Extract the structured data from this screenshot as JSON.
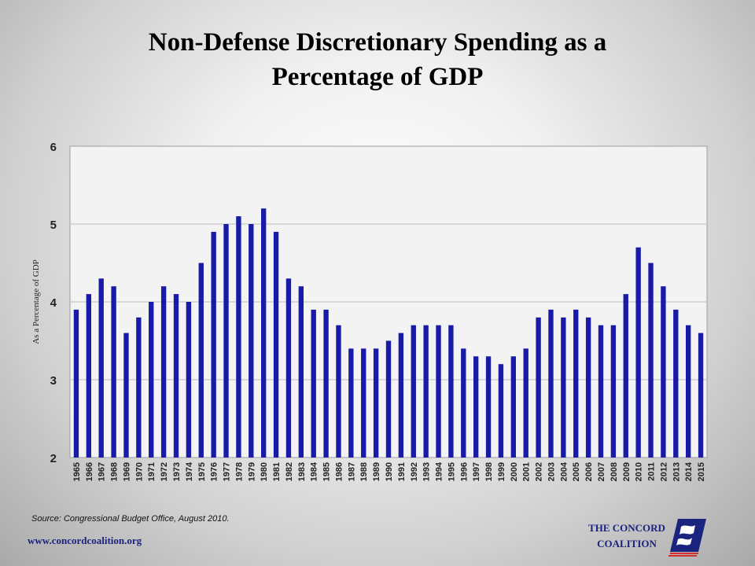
{
  "slide": {
    "title_line1": "Non-Defense Discretionary Spending as a",
    "title_line2": "Percentage of GDP",
    "source": "Source: Congressional Budget Office, August 2010.",
    "url": "www.concordcoalition.org",
    "logo_line1": "THE CONCORD",
    "logo_line2": "COALITION",
    "logo_icon": "concord-coalition-flag-logo"
  },
  "colors": {
    "bar": "#1a1aa8",
    "plot_background": "#f3f3f3",
    "grid": "#bdbdbd",
    "text_brand": "#1a237e",
    "logo_red": "#d32f2f"
  },
  "chart_data": {
    "type": "bar",
    "title": "Non-Defense Discretionary Spending as a Percentage of GDP",
    "xlabel": "",
    "ylabel": "As a Percentage of GDP",
    "ylim": [
      2,
      6
    ],
    "yticks": [
      2,
      3,
      4,
      5,
      6
    ],
    "grid": true,
    "legend": "none",
    "categories": [
      "1965",
      "1966",
      "1967",
      "1968",
      "1969",
      "1970",
      "1971",
      "1972",
      "1973",
      "1974",
      "1975",
      "1976",
      "1977",
      "1978",
      "1979",
      "1980",
      "1981",
      "1982",
      "1983",
      "1984",
      "1985",
      "1986",
      "1987",
      "1988",
      "1989",
      "1990",
      "1991",
      "1992",
      "1993",
      "1994",
      "1995",
      "1996",
      "1997",
      "1998",
      "1999",
      "2000",
      "2001",
      "2002",
      "2003",
      "2004",
      "2005",
      "2006",
      "2007",
      "2008",
      "2009",
      "2010",
      "2011",
      "2012",
      "2013",
      "2014",
      "2015"
    ],
    "values": [
      3.9,
      4.1,
      4.3,
      4.2,
      3.6,
      3.8,
      4.0,
      4.2,
      4.1,
      4.0,
      4.5,
      4.9,
      5.0,
      5.1,
      5.0,
      5.2,
      4.9,
      4.3,
      4.2,
      3.9,
      3.9,
      3.7,
      3.4,
      3.4,
      3.4,
      3.5,
      3.6,
      3.7,
      3.7,
      3.7,
      3.7,
      3.4,
      3.3,
      3.3,
      3.2,
      3.3,
      3.4,
      3.8,
      3.9,
      3.8,
      3.9,
      3.8,
      3.7,
      3.7,
      4.1,
      4.7,
      4.5,
      4.2,
      3.9,
      3.7,
      3.6
    ]
  }
}
